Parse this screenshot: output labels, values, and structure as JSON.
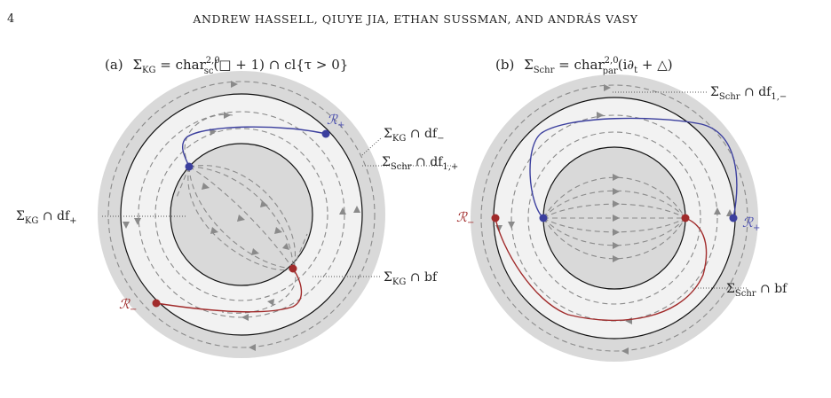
{
  "header": {
    "page_number": "4",
    "authors": "ANDREW HASSELL, QIUYE JIA, ETHAN SUSSMAN, AND ANDRÁS VASY"
  },
  "figure": {
    "panel_a": {
      "caption_tag": "(a)",
      "caption_sigma": "Σ",
      "caption_sub": "KG",
      "caption_eq": " = char",
      "caption_sup": "2,0",
      "caption_sub2": "sc",
      "caption_rest": "(□ + 1) ∩ cl{τ > 0}",
      "labels": {
        "df_minus": {
          "main": "Σ",
          "sub": "KG",
          "rest": " ∩ df",
          "sub2": "−"
        },
        "schr_df1plus": {
          "main": "Σ",
          "sub": "Schr",
          "rest": " ∩ df",
          "sub2": "1,+"
        },
        "df_plus": {
          "main": "Σ",
          "sub": "KG",
          "rest": " ∩ df",
          "sub2": "+"
        },
        "bf": {
          "main": "Σ",
          "sub": "KG",
          "rest": " ∩ bf"
        }
      },
      "radial_sets": {
        "plus": "ℛ",
        "plus_sub": "+",
        "minus": "ℛ",
        "minus_sub": "−"
      }
    },
    "panel_b": {
      "caption_tag": "(b)",
      "caption_sigma": "Σ",
      "caption_sub": "Schr",
      "caption_eq": " = char",
      "caption_sup": "2,0",
      "caption_sub2": "par",
      "caption_rest": "(i∂",
      "caption_t": "t",
      "caption_end": " + △)",
      "labels": {
        "df1minus": {
          "main": "Σ",
          "sub": "Schr",
          "rest": " ∩ df",
          "sub2": "1,−"
        },
        "bf": {
          "main": "Σ",
          "sub": "Schr",
          "rest": " ∩ bf"
        }
      },
      "radial_sets": {
        "plus": "ℛ",
        "plus_sub": "+",
        "minus": "ℛ",
        "minus_sub": "−"
      }
    },
    "colors": {
      "outer_annulus": "#d9d9d9",
      "middle_annulus": "#f2f2f2",
      "inner_disk": "#d9d9d9",
      "blue_curve": "#3b3f9e",
      "red_curve": "#a12b2b",
      "flow_lines": "#8a8a8a"
    }
  }
}
